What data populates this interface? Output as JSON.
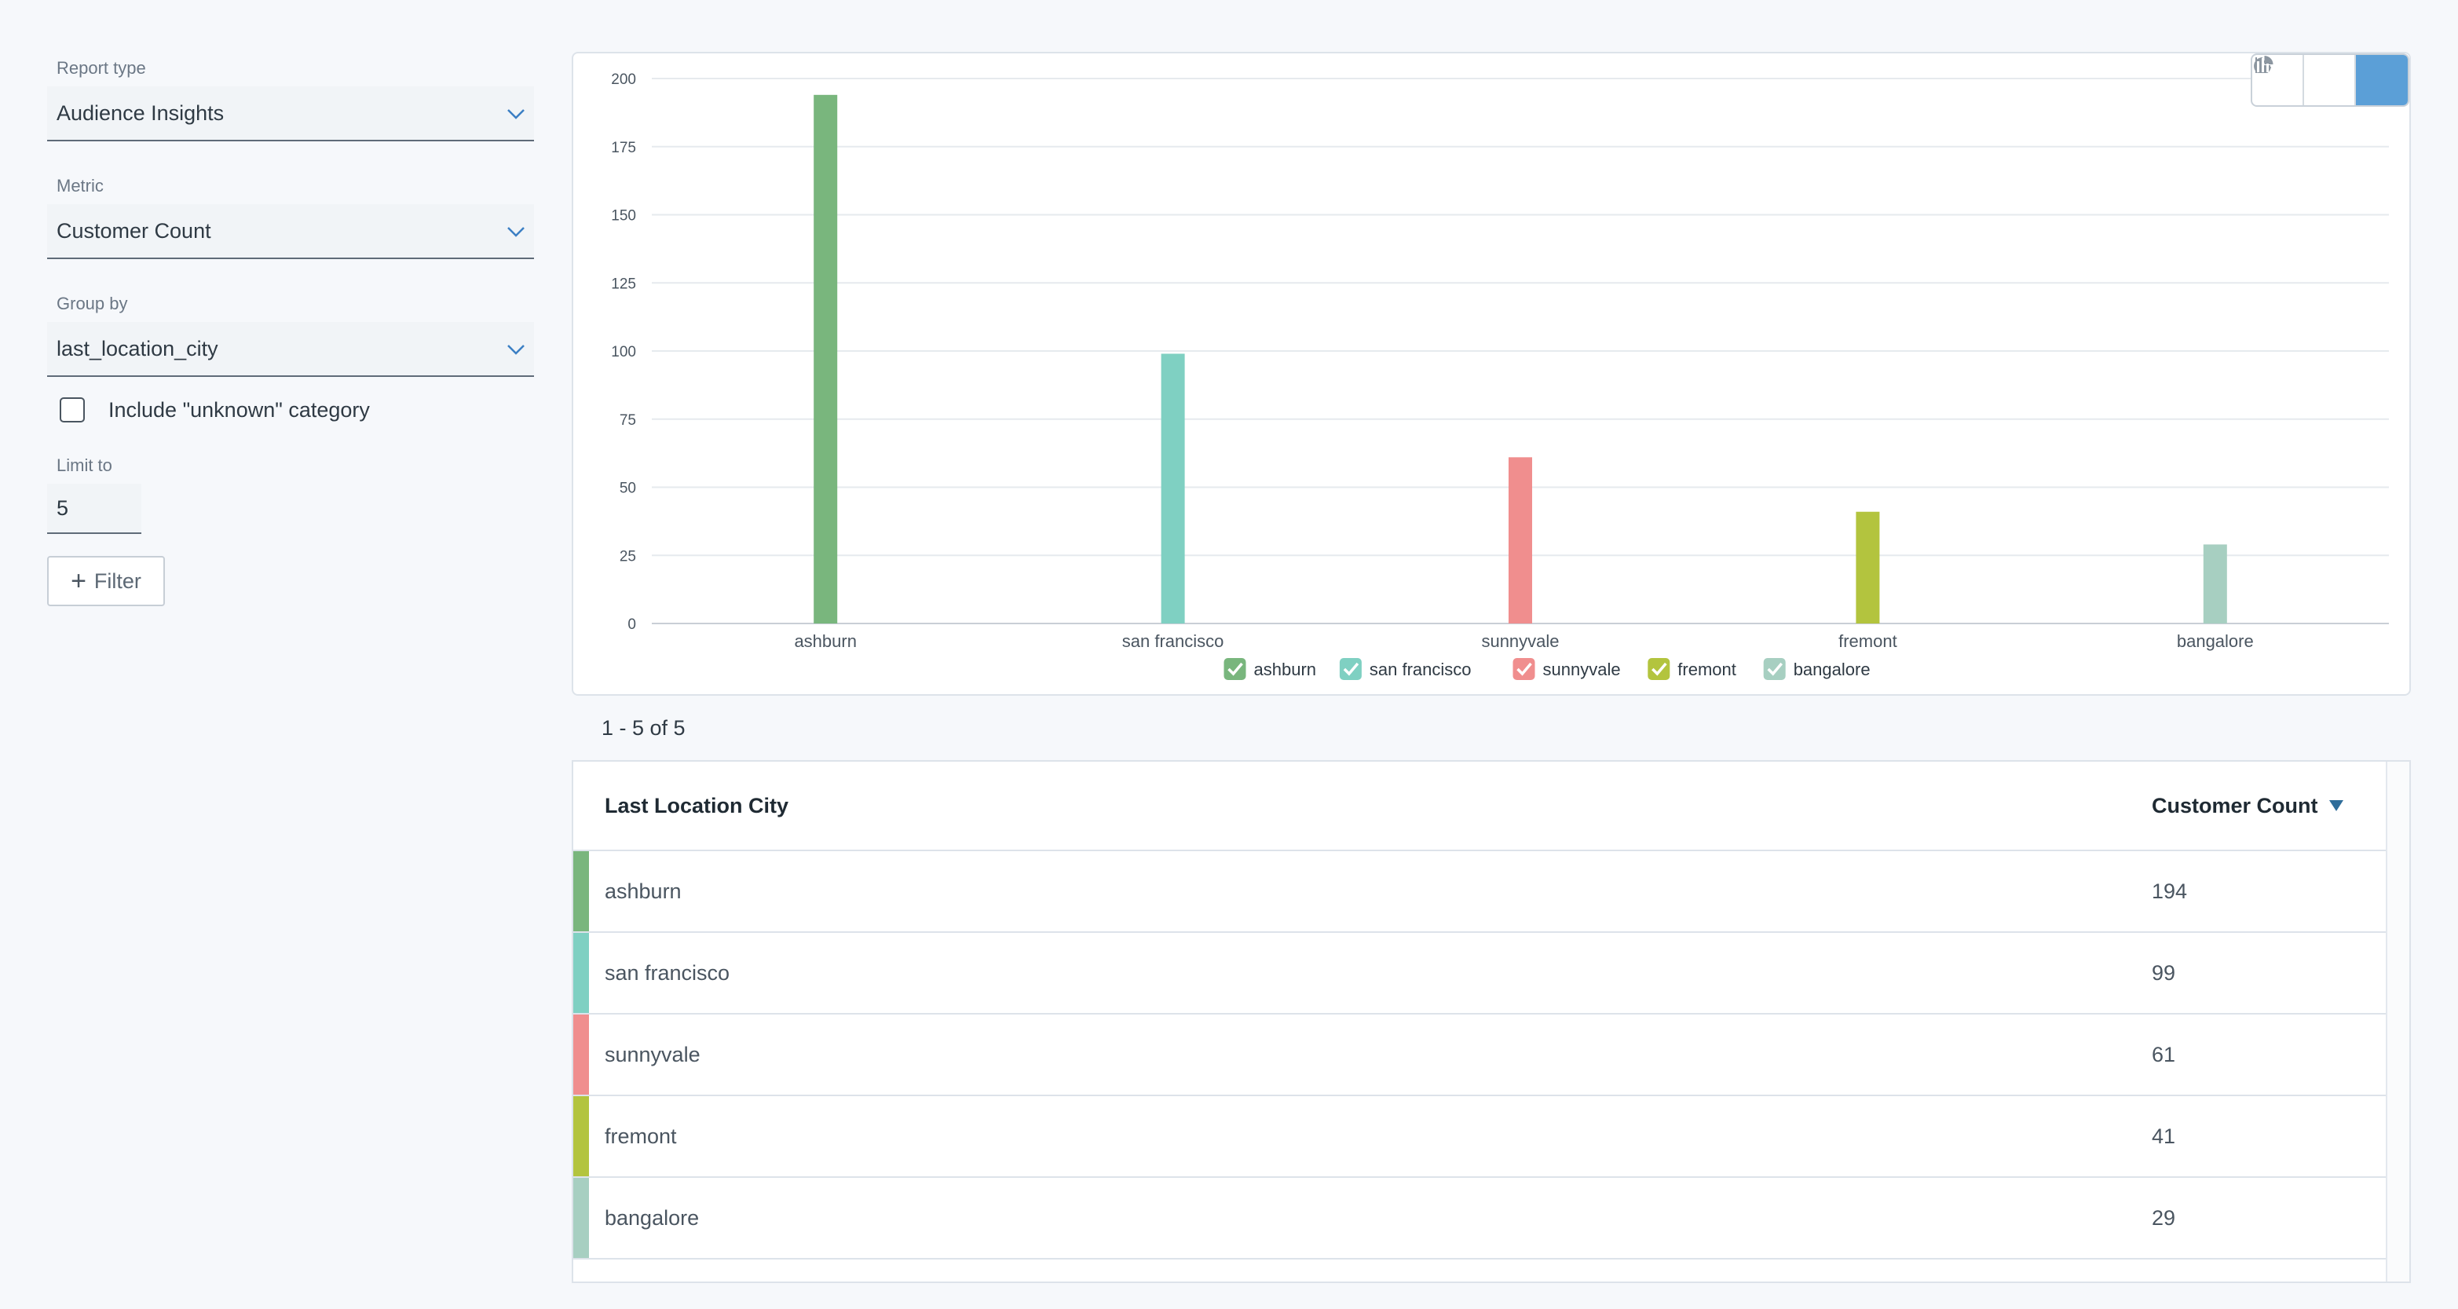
{
  "sidebar": {
    "report_type": {
      "label": "Report type",
      "value": "Audience Insights"
    },
    "metric": {
      "label": "Metric",
      "value": "Customer Count"
    },
    "group_by": {
      "label": "Group by",
      "value": "last_location_city"
    },
    "include_unknown": {
      "label": "Include \"unknown\" category",
      "checked": false
    },
    "limit": {
      "label": "Limit to",
      "value": "5"
    },
    "filter_button": "Filter"
  },
  "view_switch": [
    "pie-chart-icon",
    "horizontal-bar-icon",
    "vertical-bar-icon"
  ],
  "result_count": "1 - 5 of 5",
  "chart_data": {
    "type": "bar",
    "categories": [
      "ashburn",
      "san francisco",
      "sunnyvale",
      "fremont",
      "bangalore"
    ],
    "values": [
      194,
      99,
      61,
      41,
      29
    ],
    "colors": [
      "#79b67d",
      "#7fd0c2",
      "#f08e8e",
      "#b3c43e",
      "#a7cfc1"
    ],
    "yticks": [
      0,
      25,
      50,
      75,
      100,
      125,
      150,
      175,
      200
    ],
    "ylim": [
      0,
      200
    ],
    "legend": [
      "ashburn",
      "san francisco",
      "sunnyvale",
      "fremont",
      "bangalore"
    ],
    "legend_position": "bottom-center",
    "grid": true
  },
  "table": {
    "headers": [
      "Last Location City",
      "Customer Count"
    ],
    "rows": [
      {
        "city": "ashburn",
        "count": "194",
        "color": "#79b67d"
      },
      {
        "city": "san francisco",
        "count": "99",
        "color": "#7fd0c2"
      },
      {
        "city": "sunnyvale",
        "count": "61",
        "color": "#f08e8e"
      },
      {
        "city": "fremont",
        "count": "41",
        "color": "#b3c43e"
      },
      {
        "city": "bangalore",
        "count": "29",
        "color": "#a7cfc1"
      }
    ]
  }
}
